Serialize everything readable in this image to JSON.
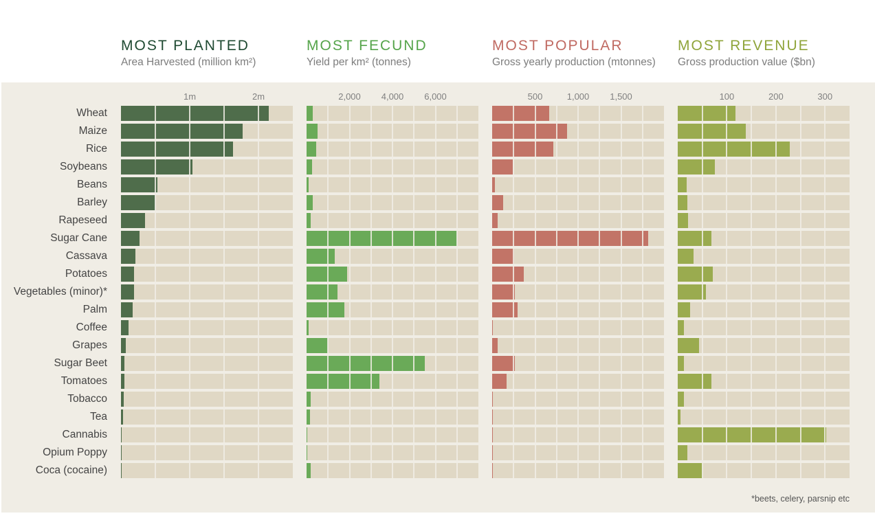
{
  "colors": {
    "planted": "#4f6d4b",
    "fecund": "#6aaa58",
    "popular": "#c27467",
    "revenue": "#9aab4f",
    "track": "#e0d8c5"
  },
  "chart_data": [
    {
      "type": "bar",
      "id": "planted",
      "title": "MOST PLANTED",
      "subtitle": "Area Harvested (million km²)",
      "xlim": [
        0,
        2.5
      ],
      "ticks": [
        1,
        2
      ],
      "tick_labels": [
        "1m",
        "2m"
      ],
      "categories": [
        "Wheat",
        "Maize",
        "Rice",
        "Soybeans",
        "Beans",
        "Barley",
        "Rapeseed",
        "Sugar Cane",
        "Cassava",
        "Potatoes",
        "Vegetables (minor)*",
        "Palm",
        "Coffee",
        "Grapes",
        "Sugar Beet",
        "Tomatoes",
        "Tobacco",
        "Tea",
        "Cannabis",
        "Opium Poppy",
        "Coca (cocaine)"
      ],
      "values": [
        2.15,
        1.77,
        1.63,
        1.04,
        0.53,
        0.5,
        0.35,
        0.27,
        0.21,
        0.19,
        0.19,
        0.17,
        0.11,
        0.07,
        0.05,
        0.05,
        0.04,
        0.03,
        0.01,
        0.002,
        0.002
      ]
    },
    {
      "type": "bar",
      "id": "fecund",
      "title": "MOST FECUND",
      "subtitle": "Yield per km² (tonnes)",
      "xlim": [
        0,
        8000
      ],
      "ticks": [
        2000,
        4000,
        6000
      ],
      "tick_labels": [
        "2,000",
        "4,000",
        "6,000"
      ],
      "categories": [
        "Wheat",
        "Maize",
        "Rice",
        "Soybeans",
        "Beans",
        "Barley",
        "Rapeseed",
        "Sugar Cane",
        "Cassava",
        "Potatoes",
        "Vegetables (minor)*",
        "Palm",
        "Coffee",
        "Grapes",
        "Sugar Beet",
        "Tomatoes",
        "Tobacco",
        "Tea",
        "Cannabis",
        "Opium Poppy",
        "Coca (cocaine)"
      ],
      "values": [
        300,
        500,
        450,
        250,
        80,
        280,
        180,
        7000,
        1300,
        1900,
        1450,
        1750,
        80,
        1000,
        5500,
        3400,
        200,
        160,
        30,
        20,
        200
      ]
    },
    {
      "type": "bar",
      "id": "popular",
      "title": "MOST POPULAR",
      "subtitle": "Gross yearly production (mtonnes)",
      "xlim": [
        0,
        2000
      ],
      "ticks": [
        500,
        1000,
        1500
      ],
      "tick_labels": [
        "500",
        "1,000",
        "1,500"
      ],
      "categories": [
        "Wheat",
        "Maize",
        "Rice",
        "Soybeans",
        "Beans",
        "Barley",
        "Rapeseed",
        "Sugar Cane",
        "Cassava",
        "Potatoes",
        "Vegetables (minor)*",
        "Palm",
        "Coffee",
        "Grapes",
        "Sugar Beet",
        "Tomatoes",
        "Tobacco",
        "Tea",
        "Cannabis",
        "Opium Poppy",
        "Coca (cocaine)"
      ],
      "values": [
        665,
        870,
        715,
        240,
        30,
        130,
        65,
        1815,
        255,
        365,
        265,
        295,
        9,
        65,
        265,
        165,
        8,
        5,
        0,
        0,
        0
      ]
    },
    {
      "type": "bar",
      "id": "revenue",
      "title": "MOST REVENUE",
      "subtitle": "Gross production value ($bn)",
      "xlim": [
        0,
        350
      ],
      "ticks": [
        100,
        200,
        300
      ],
      "tick_labels": [
        "100",
        "200",
        "300"
      ],
      "categories": [
        "Wheat",
        "Maize",
        "Rice",
        "Soybeans",
        "Beans",
        "Barley",
        "Rapeseed",
        "Sugar Cane",
        "Cassava",
        "Potatoes",
        "Vegetables (minor)*",
        "Palm",
        "Coffee",
        "Grapes",
        "Sugar Beet",
        "Tomatoes",
        "Tobacco",
        "Tea",
        "Cannabis",
        "Opium Poppy",
        "Coca (cocaine)"
      ],
      "values": [
        118,
        138,
        228,
        75,
        18,
        19,
        21,
        68,
        32,
        71,
        58,
        25,
        12,
        44,
        13,
        68,
        13,
        6,
        302,
        19,
        51
      ]
    }
  ],
  "footnote": "*beets, celery, parsnip etc"
}
